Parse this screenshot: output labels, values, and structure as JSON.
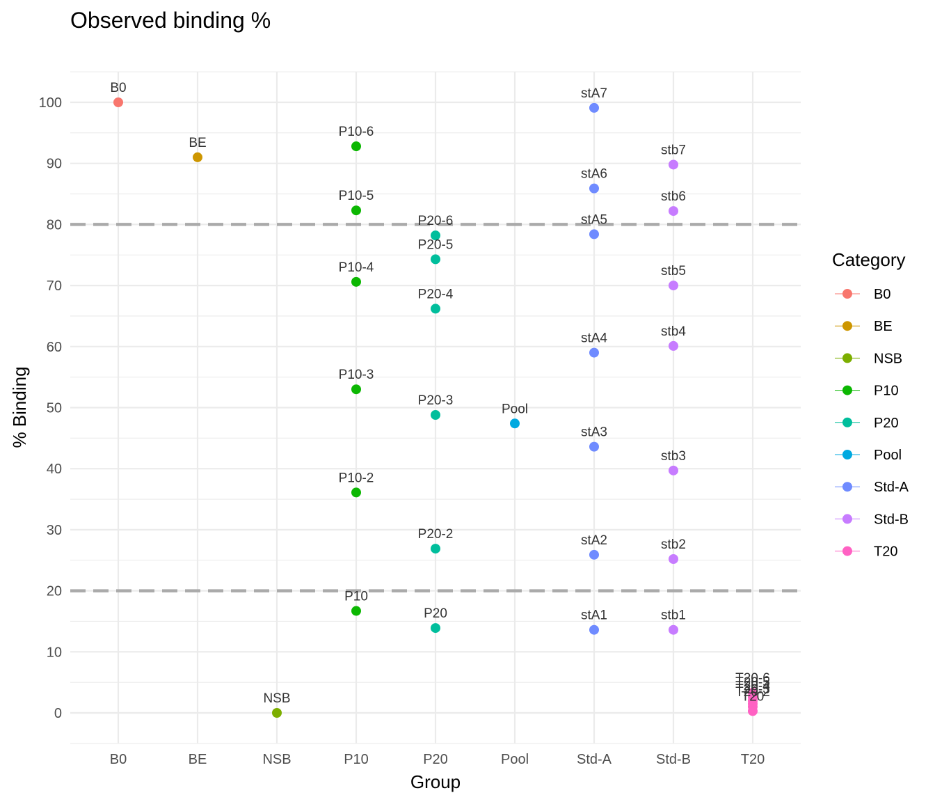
{
  "chart_data": {
    "type": "scatter",
    "title": "Observed binding %",
    "xlabel": "Group",
    "ylabel": "% Binding",
    "categories": [
      "B0",
      "BE",
      "NSB",
      "P10",
      "P20",
      "Pool",
      "Std-A",
      "Std-B",
      "T20"
    ],
    "ylim": [
      -5,
      105
    ],
    "yticks": [
      0,
      10,
      20,
      30,
      40,
      50,
      60,
      70,
      80,
      90,
      100
    ],
    "grid": true,
    "reference_lines": [
      80,
      20
    ],
    "legend": {
      "title": "Category",
      "position": "right"
    },
    "colors": {
      "B0": "#F8766D",
      "BE": "#CD9600",
      "NSB": "#7CAE00",
      "P10": "#0CB702",
      "P20": "#00BE9C",
      "Pool": "#00A9E0",
      "Std-A": "#6F8BFF",
      "Std-B": "#C77CFF",
      "T20": "#FF61C3",
      "reference_line": "#aaaaaa"
    },
    "series": [
      {
        "name": "B0",
        "points": [
          {
            "x": "B0",
            "y": 100,
            "label": "B0"
          }
        ]
      },
      {
        "name": "BE",
        "points": [
          {
            "x": "BE",
            "y": 91,
            "label": "BE"
          }
        ]
      },
      {
        "name": "NSB",
        "points": [
          {
            "x": "NSB",
            "y": 0,
            "label": "NSB"
          }
        ]
      },
      {
        "name": "P10",
        "points": [
          {
            "x": "P10",
            "y": 92.8,
            "label": "P10-6"
          },
          {
            "x": "P10",
            "y": 82.3,
            "label": "P10-5"
          },
          {
            "x": "P10",
            "y": 70.6,
            "label": "P10-4"
          },
          {
            "x": "P10",
            "y": 53.0,
            "label": "P10-3"
          },
          {
            "x": "P10",
            "y": 36.1,
            "label": "P10-2"
          },
          {
            "x": "P10",
            "y": 16.7,
            "label": "P10"
          }
        ]
      },
      {
        "name": "P20",
        "points": [
          {
            "x": "P20",
            "y": 78.2,
            "label": "P20-6"
          },
          {
            "x": "P20",
            "y": 74.3,
            "label": "P20-5"
          },
          {
            "x": "P20",
            "y": 66.2,
            "label": "P20-4"
          },
          {
            "x": "P20",
            "y": 48.8,
            "label": "P20-3"
          },
          {
            "x": "P20",
            "y": 26.9,
            "label": "P20-2"
          },
          {
            "x": "P20",
            "y": 13.9,
            "label": "P20"
          }
        ]
      },
      {
        "name": "Pool",
        "points": [
          {
            "x": "Pool",
            "y": 47.4,
            "label": "Pool"
          }
        ]
      },
      {
        "name": "Std-A",
        "points": [
          {
            "x": "Std-A",
            "y": 99.1,
            "label": "stA7"
          },
          {
            "x": "Std-A",
            "y": 85.9,
            "label": "stA6"
          },
          {
            "x": "Std-A",
            "y": 78.4,
            "label": "stA5"
          },
          {
            "x": "Std-A",
            "y": 59.0,
            "label": "stA4"
          },
          {
            "x": "Std-A",
            "y": 43.6,
            "label": "stA3"
          },
          {
            "x": "Std-A",
            "y": 25.9,
            "label": "stA2"
          },
          {
            "x": "Std-A",
            "y": 13.6,
            "label": "stA1"
          }
        ]
      },
      {
        "name": "Std-B",
        "points": [
          {
            "x": "Std-B",
            "y": 89.8,
            "label": "stb7"
          },
          {
            "x": "Std-B",
            "y": 82.2,
            "label": "stb6"
          },
          {
            "x": "Std-B",
            "y": 70.0,
            "label": "stb5"
          },
          {
            "x": "Std-B",
            "y": 60.1,
            "label": "stb4"
          },
          {
            "x": "Std-B",
            "y": 39.7,
            "label": "stb3"
          },
          {
            "x": "Std-B",
            "y": 25.2,
            "label": "stb2"
          },
          {
            "x": "Std-B",
            "y": 13.6,
            "label": "stb1"
          }
        ]
      },
      {
        "name": "T20",
        "points": [
          {
            "x": "T20",
            "y": 3.3,
            "label": "T20-6"
          },
          {
            "x": "T20",
            "y": 2.6,
            "label": "T20-5"
          },
          {
            "x": "T20",
            "y": 2.0,
            "label": "T20-4"
          },
          {
            "x": "T20",
            "y": 1.5,
            "label": "T20-3"
          },
          {
            "x": "T20",
            "y": 1.0,
            "label": "T20-2"
          },
          {
            "x": "T20",
            "y": 0.3,
            "label": "T20"
          }
        ]
      }
    ]
  }
}
